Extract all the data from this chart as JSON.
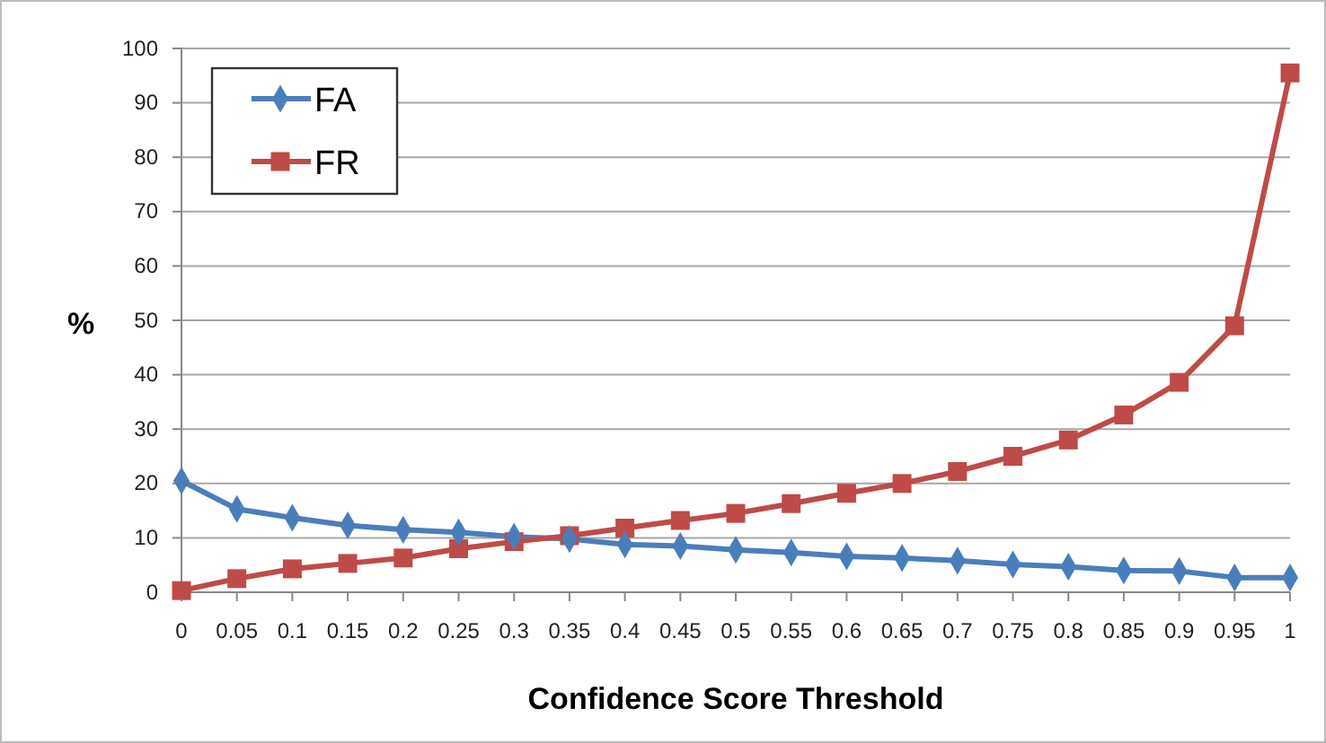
{
  "chart_data": {
    "type": "line",
    "xlabel": "Confidence Score Threshold",
    "ylabel": "%",
    "categories": [
      "0",
      "0.05",
      "0.1",
      "0.15",
      "0.2",
      "0.25",
      "0.3",
      "0.35",
      "0.4",
      "0.45",
      "0.5",
      "0.55",
      "0.6",
      "0.65",
      "0.7",
      "0.75",
      "0.8",
      "0.85",
      "0.9",
      "0.95",
      "1"
    ],
    "series": [
      {
        "name": "FA",
        "color": "#4a7ebb",
        "marker": "diamond",
        "values": [
          20.5,
          15.3,
          13.7,
          12.3,
          11.5,
          11,
          10.2,
          9.8,
          8.8,
          8.5,
          7.8,
          7.3,
          6.6,
          6.3,
          5.8,
          5.1,
          4.7,
          4.0,
          3.9,
          2.7,
          2.7
        ]
      },
      {
        "name": "FR",
        "color": "#be4b48",
        "marker": "square",
        "values": [
          0.3,
          2.5,
          4.3,
          5.3,
          6.3,
          8,
          9.3,
          10.4,
          11.8,
          13.2,
          14.5,
          16.3,
          18.2,
          20.0,
          22.2,
          25,
          28,
          32.6,
          38.6,
          49,
          95.5
        ]
      }
    ],
    "ylim": [
      0,
      100
    ],
    "yticks": [
      0,
      10,
      20,
      30,
      40,
      50,
      60,
      70,
      80,
      90,
      100
    ],
    "grid": "y",
    "legend": "top left"
  }
}
